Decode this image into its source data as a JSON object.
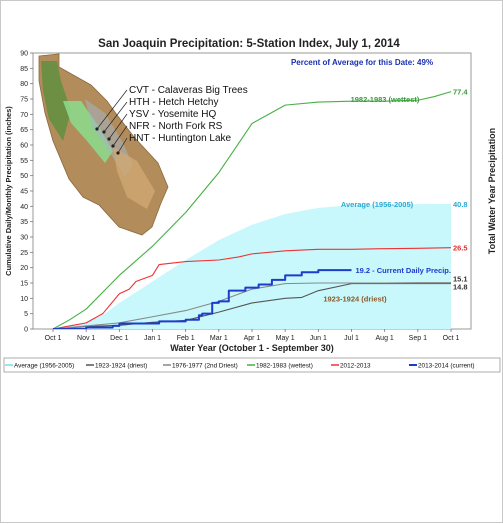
{
  "chart_data": {
    "type": "line",
    "title": "San Joaquin Precipitation: 5-Station Index, July 1, 2014",
    "xlabel": "Water Year (October 1 - September 30)",
    "ylabel": "Cumulative Daily/Monthly Precipitation (inches)",
    "ylabel_right": "Total Water Year Precipitation",
    "annotation_percent": "Percent of Average for this Date: 49%",
    "ylim": [
      0,
      90
    ],
    "yticks": [
      "0",
      "5",
      "10",
      "15",
      "20",
      "25",
      "30",
      "35",
      "40",
      "45",
      "50",
      "55",
      "60",
      "65",
      "70",
      "75",
      "80",
      "85",
      "90"
    ],
    "xticks": [
      "Oct 1",
      "Nov 1",
      "Dec 1",
      "Jan 1",
      "Feb 1",
      "Mar 1",
      "Apr 1",
      "May 1",
      "Jun 1",
      "Jul 1",
      "Aug 1",
      "Sep 1",
      "Oct 1"
    ],
    "grid": false,
    "legend_position": "bottom",
    "stations": [
      "CVT - Calaveras Big Trees",
      "HTH - Hetch Hetchy",
      "YSV - Yosemite HQ",
      "NFR - North Fork RS",
      "HNT - Huntington Lake"
    ],
    "series": [
      {
        "name": "Average (1956-2005)",
        "label": "Average (1956-2005)",
        "end_label": "40.8",
        "color": "#c8f8fb",
        "style": "area",
        "x": [
          0,
          0.5,
          1,
          1.5,
          2,
          3,
          4,
          5,
          6,
          7,
          8,
          9,
          10,
          11,
          12
        ],
        "y": [
          0,
          0.8,
          2.2,
          4.5,
          8.5,
          15.5,
          22.5,
          29,
          34,
          37.5,
          39.5,
          40.4,
          40.6,
          40.7,
          40.8
        ]
      },
      {
        "name": "1923-1924 (driest)",
        "label": "1923-1924 (driest)",
        "end_label": "14.8",
        "color": "#555555",
        "style": "line",
        "x": [
          0,
          1,
          2,
          3,
          4,
          5,
          6,
          7,
          7.5,
          8,
          9,
          10,
          11,
          12
        ],
        "y": [
          0,
          0.8,
          1.2,
          2.2,
          2.8,
          5.5,
          8.5,
          10,
          10.3,
          12.5,
          14.8,
          14.8,
          14.8,
          14.8
        ]
      },
      {
        "name": "1976-1977 (2nd Driest)",
        "label": "",
        "end_label": "15.1",
        "color": "#888888",
        "style": "line",
        "x": [
          0,
          1,
          2,
          3,
          4,
          5,
          6,
          7,
          8,
          9,
          10,
          11,
          12
        ],
        "y": [
          0,
          1,
          2,
          4,
          6,
          9,
          13,
          14.8,
          15,
          15,
          15,
          15.1,
          15.1
        ]
      },
      {
        "name": "1982-1983 (wettest)",
        "label": "1982-1983 (wettest)",
        "end_label": "77.4",
        "color": "#45b045",
        "style": "line",
        "x": [
          0,
          0.5,
          1,
          1.5,
          2,
          3,
          4,
          5,
          6,
          7,
          8,
          9,
          10,
          11,
          11.5,
          12
        ],
        "y": [
          0,
          3,
          6.5,
          12,
          17.5,
          27,
          38,
          51,
          67,
          73,
          74,
          74.3,
          74.3,
          74.6,
          75.8,
          77.4
        ]
      },
      {
        "name": "2012-2013",
        "label": "",
        "end_label": "26.5",
        "color": "#ee3333",
        "style": "line",
        "x": [
          0,
          0.5,
          1,
          1.5,
          2,
          2.3,
          2.5,
          3,
          3.2,
          4,
          5,
          5.6,
          6,
          7,
          8,
          9,
          10,
          11,
          12
        ],
        "y": [
          0,
          1,
          2,
          5,
          11.5,
          13,
          15.5,
          17.5,
          21,
          22,
          22.5,
          23.5,
          24.5,
          25.5,
          26,
          26,
          26.2,
          26.3,
          26.5
        ]
      },
      {
        "name": "2013-2014 (current)",
        "label": "19.2 - Current Daily Precip.",
        "end_label": "",
        "color": "#1c3ccc",
        "style": "step",
        "x": [
          0,
          1,
          1.8,
          2,
          3.2,
          4,
          4.4,
          4.5,
          4.8,
          5,
          5.3,
          5.8,
          6.2,
          6.6,
          7,
          7.5,
          8,
          9
        ],
        "y": [
          0,
          0.5,
          1,
          1.8,
          2.5,
          3,
          4.5,
          5,
          8.5,
          9,
          12.5,
          13.5,
          14.5,
          16,
          17.5,
          18.5,
          19.2,
          19.2
        ]
      }
    ]
  }
}
